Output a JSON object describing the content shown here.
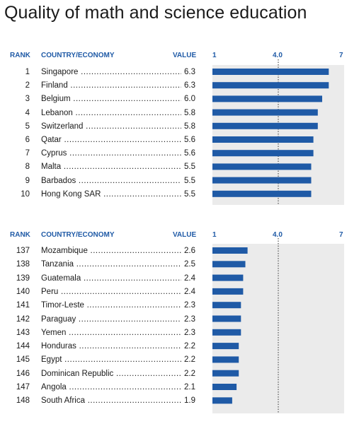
{
  "title": "Quality of math and science education",
  "colors": {
    "bar": "#1f5aa6",
    "header": "#1f5aa6",
    "plot_bg": "#ebebeb",
    "dotted_line": "#333333"
  },
  "chart_data": [
    {
      "type": "bar",
      "orientation": "horizontal",
      "headers": {
        "rank": "RANK",
        "country": "COUNTRY/ECONOMY",
        "value": "VALUE"
      },
      "x_ticks": [
        "1",
        "4.0",
        "7"
      ],
      "xlim": [
        1,
        7
      ],
      "reference_line": 4.0,
      "rows": [
        {
          "rank": "1",
          "country": "Singapore",
          "value": "6.3"
        },
        {
          "rank": "2",
          "country": "Finland",
          "value": "6.3"
        },
        {
          "rank": "3",
          "country": "Belgium",
          "value": "6.0"
        },
        {
          "rank": "4",
          "country": "Lebanon",
          "value": "5.8"
        },
        {
          "rank": "5",
          "country": "Switzerland",
          "value": "5.8"
        },
        {
          "rank": "6",
          "country": "Qatar",
          "value": "5.6"
        },
        {
          "rank": "7",
          "country": "Cyprus",
          "value": "5.6"
        },
        {
          "rank": "8",
          "country": "Malta",
          "value": "5.5"
        },
        {
          "rank": "9",
          "country": "Barbados",
          "value": "5.5"
        },
        {
          "rank": "10",
          "country": "Hong Kong SAR",
          "value": "5.5"
        }
      ]
    },
    {
      "type": "bar",
      "orientation": "horizontal",
      "headers": {
        "rank": "RANK",
        "country": "COUNTRY/ECONOMY",
        "value": "VALUE"
      },
      "x_ticks": [
        "1",
        "4.0",
        "7"
      ],
      "xlim": [
        1,
        7
      ],
      "reference_line": 4.0,
      "rows": [
        {
          "rank": "137",
          "country": "Mozambique",
          "value": "2.6"
        },
        {
          "rank": "138",
          "country": "Tanzania",
          "value": "2.5"
        },
        {
          "rank": "139",
          "country": "Guatemala",
          "value": "2.4"
        },
        {
          "rank": "140",
          "country": "Peru",
          "value": "2.4"
        },
        {
          "rank": "141",
          "country": "Timor-Leste",
          "value": "2.3"
        },
        {
          "rank": "142",
          "country": "Paraguay",
          "value": "2.3"
        },
        {
          "rank": "143",
          "country": "Yemen",
          "value": "2.3"
        },
        {
          "rank": "144",
          "country": "Honduras",
          "value": "2.2"
        },
        {
          "rank": "145",
          "country": "Egypt",
          "value": "2.2"
        },
        {
          "rank": "146",
          "country": "Dominican Republic",
          "value": "2.2"
        },
        {
          "rank": "147",
          "country": "Angola",
          "value": "2.1"
        },
        {
          "rank": "148",
          "country": "South Africa",
          "value": "1.9"
        }
      ]
    }
  ]
}
